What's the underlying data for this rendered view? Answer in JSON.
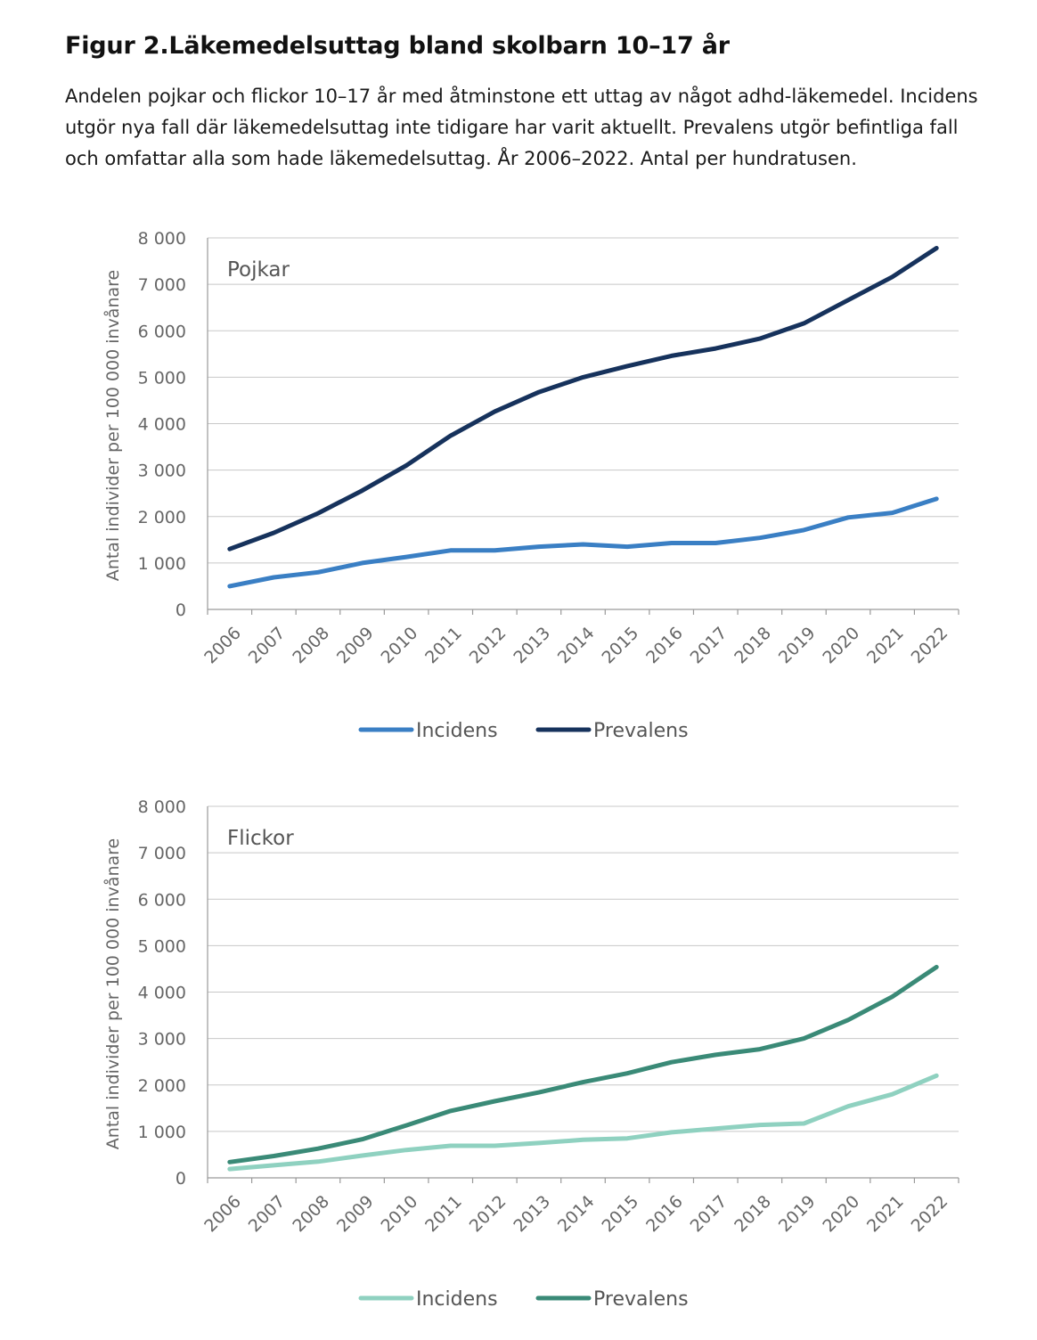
{
  "header": {
    "title": "Figur 2.Läkemedelsuttag bland skolbarn 10–17 år",
    "subtitle": "Andelen pojkar och flickor 10–17 år med åtminstone ett uttag av något adhd-läkemedel. Incidens utgör nya fall där läkemedelsuttag inte tidigare har varit aktuellt. Prevalens utgör befintliga fall och omfattar alla som hade läkemedelsuttag. År 2006–2022. Antal per hundratusen."
  },
  "chart_data": [
    {
      "type": "line",
      "panel_label": "Pojkar",
      "ylabel": "Antal individer per 100 000 invånare",
      "xlabel": "",
      "ylim": [
        0,
        8000
      ],
      "yticks": [
        0,
        1000,
        2000,
        3000,
        4000,
        5000,
        6000,
        7000,
        8000
      ],
      "ytick_labels": [
        "0",
        "1 000",
        "2 000",
        "3 000",
        "4 000",
        "5 000",
        "6 000",
        "7 000",
        "8 000"
      ],
      "categories": [
        "2006",
        "2007",
        "2008",
        "2009",
        "2010",
        "2011",
        "2012",
        "2013",
        "2014",
        "2015",
        "2016",
        "2017",
        "2018",
        "2019",
        "2020",
        "2021",
        "2022"
      ],
      "grid": true,
      "legend_position": "bottom-center",
      "series": [
        {
          "name": "Incidens",
          "color": "#3a7fc4",
          "values": [
            500,
            690,
            800,
            1000,
            1130,
            1270,
            1270,
            1350,
            1400,
            1350,
            1430,
            1430,
            1540,
            1710,
            1980,
            2080,
            2380
          ]
        },
        {
          "name": "Prevalens",
          "color": "#16325c",
          "values": [
            1300,
            1650,
            2070,
            2560,
            3100,
            3740,
            4260,
            4680,
            5000,
            5240,
            5460,
            5620,
            5830,
            6160,
            6660,
            7160,
            7780
          ]
        }
      ]
    },
    {
      "type": "line",
      "panel_label": "Flickor",
      "ylabel": "Antal individer per 100 000 invånare",
      "xlabel": "",
      "ylim": [
        0,
        8000
      ],
      "yticks": [
        0,
        1000,
        2000,
        3000,
        4000,
        5000,
        6000,
        7000,
        8000
      ],
      "ytick_labels": [
        "0",
        "1 000",
        "2 000",
        "3 000",
        "4 000",
        "5 000",
        "6 000",
        "7 000",
        "8 000"
      ],
      "categories": [
        "2006",
        "2007",
        "2008",
        "2009",
        "2010",
        "2011",
        "2012",
        "2013",
        "2014",
        "2015",
        "2016",
        "2017",
        "2018",
        "2019",
        "2020",
        "2021",
        "2022"
      ],
      "grid": true,
      "legend_position": "bottom-center",
      "series": [
        {
          "name": "Incidens",
          "color": "#8fd1c0",
          "values": [
            190,
            270,
            350,
            480,
            600,
            690,
            690,
            750,
            820,
            850,
            980,
            1060,
            1140,
            1170,
            1540,
            1800,
            2200
          ]
        },
        {
          "name": "Prevalens",
          "color": "#3a8a77",
          "values": [
            340,
            470,
            630,
            830,
            1130,
            1440,
            1650,
            1840,
            2060,
            2250,
            2490,
            2650,
            2770,
            3000,
            3400,
            3900,
            4540
          ]
        }
      ]
    }
  ]
}
